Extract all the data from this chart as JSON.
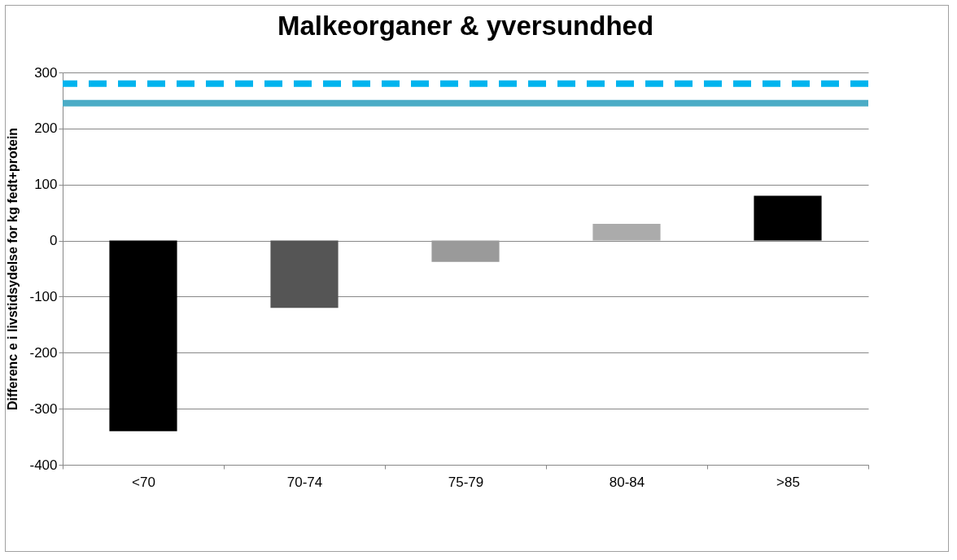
{
  "chart_data": {
    "type": "bar",
    "title": "Malkeorganer & yversundhed",
    "ylabel": "Differenc e i livstidsydelse for kg fedt+protein",
    "categories": [
      "<70",
      "70-74",
      "75-79",
      "80-84",
      ">85"
    ],
    "values": [
      -340,
      -120,
      -38,
      30,
      80
    ],
    "colors": [
      "#000000",
      "#555555",
      "#9a9a9a",
      "#ababab",
      "#000000"
    ],
    "ylim": [
      -400,
      300
    ],
    "yticks": [
      -400,
      -300,
      -200,
      -100,
      0,
      100,
      200,
      300
    ],
    "grid": "y",
    "ref_lines": [
      {
        "axis": "y",
        "value": 280,
        "color": "#00b4ee",
        "line_style": "dashed"
      },
      {
        "axis": "y",
        "value": 245,
        "color": "#4bacc6",
        "line_style": "solid"
      }
    ]
  }
}
